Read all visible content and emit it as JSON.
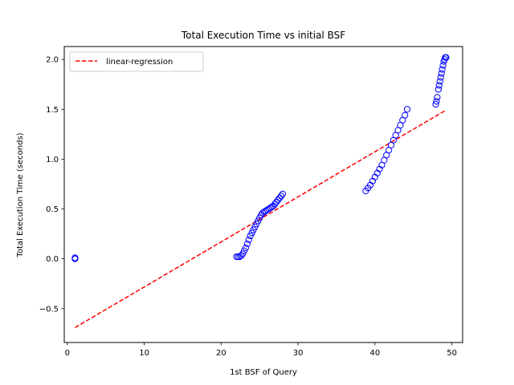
{
  "chart_data": {
    "type": "scatter",
    "title": "Total Execution Time vs initial BSF",
    "xlabel": "1st BSF of Query",
    "ylabel": "Total Execution Time (seconds)",
    "xlim": [
      -0.4,
      51.4
    ],
    "ylim": [
      -0.84,
      2.13
    ],
    "xticks": [
      0,
      10,
      20,
      30,
      40,
      50
    ],
    "yticks": [
      -0.5,
      0.0,
      0.5,
      1.0,
      1.5,
      2.0
    ],
    "xtick_labels": [
      "0",
      "10",
      "20",
      "30",
      "40",
      "50"
    ],
    "ytick_labels": [
      "−0.5",
      "0.0",
      "0.5",
      "1.0",
      "1.5",
      "2.0"
    ],
    "grid": false,
    "legend": {
      "position": "upper-left",
      "entries": [
        "linear-regression"
      ]
    },
    "colors": {
      "scatter": "#0000ff",
      "regression": "#ff0000"
    },
    "series": [
      {
        "type": "scatter",
        "marker": "open-circle",
        "x": [
          1.0,
          1.0,
          1.0,
          22.0,
          22.2,
          22.4,
          22.6,
          22.8,
          23.0,
          23.2,
          23.4,
          23.6,
          23.8,
          24.0,
          24.2,
          24.4,
          24.6,
          24.8,
          25.0,
          25.2,
          25.4,
          25.6,
          25.8,
          26.0,
          26.2,
          26.4,
          26.6,
          26.8,
          27.0,
          27.2,
          27.4,
          27.6,
          27.8,
          28.0,
          38.8,
          39.1,
          39.4,
          39.7,
          40.0,
          40.3,
          40.6,
          40.9,
          41.2,
          41.5,
          41.8,
          42.1,
          42.4,
          42.7,
          43.0,
          43.3,
          43.6,
          43.9,
          44.2,
          47.9,
          48.0,
          48.1,
          48.25,
          48.35,
          48.45,
          48.55,
          48.65,
          48.75,
          48.85,
          48.95,
          49.05,
          49.15,
          49.25
        ],
        "y": [
          0.0,
          0.01,
          0.0,
          0.02,
          0.02,
          0.02,
          0.03,
          0.05,
          0.08,
          0.11,
          0.15,
          0.19,
          0.23,
          0.26,
          0.29,
          0.32,
          0.35,
          0.38,
          0.41,
          0.44,
          0.46,
          0.47,
          0.48,
          0.49,
          0.5,
          0.51,
          0.52,
          0.53,
          0.55,
          0.57,
          0.59,
          0.61,
          0.63,
          0.65,
          0.68,
          0.71,
          0.74,
          0.78,
          0.82,
          0.86,
          0.9,
          0.94,
          0.99,
          1.04,
          1.09,
          1.14,
          1.19,
          1.24,
          1.29,
          1.34,
          1.39,
          1.44,
          1.5,
          1.55,
          1.58,
          1.62,
          1.7,
          1.74,
          1.78,
          1.82,
          1.86,
          1.9,
          1.94,
          1.98,
          2.0,
          2.02,
          2.02
        ]
      },
      {
        "type": "line",
        "name": "linear-regression",
        "style": "dashed",
        "x": [
          1.0,
          49.2
        ],
        "y": [
          -0.69,
          1.49
        ]
      }
    ]
  }
}
